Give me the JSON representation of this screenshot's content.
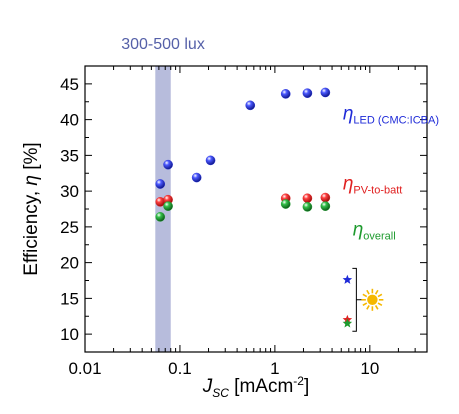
{
  "chart_data": {
    "type": "scatter",
    "x_scale": "log",
    "xlim": [
      0.01,
      40
    ],
    "ylim": [
      7.5,
      47.5
    ],
    "x_ticks": [
      0.01,
      0.1,
      1,
      10
    ],
    "x_tick_labels": [
      "0.01",
      "0.1",
      "1",
      "10"
    ],
    "y_ticks": [
      10,
      15,
      20,
      25,
      30,
      35,
      40,
      45
    ],
    "y_tick_labels": [
      "10",
      "15",
      "20",
      "25",
      "30",
      "35",
      "40",
      "45"
    ],
    "xlabel": {
      "main": "J",
      "sub": "SC",
      "unit_pre": " [mAcm",
      "unit_sup": "-2",
      "unit_post": "]"
    },
    "ylabel": {
      "pre": "Efficiency, ",
      "symbol": "η",
      "post": " [%]"
    },
    "band": {
      "x_range": [
        0.055,
        0.08
      ],
      "label": "300-500 lux",
      "color": "#aab0d6"
    },
    "series": [
      {
        "color": "#1f2bd8",
        "marker": "sphere",
        "x": [
          0.062,
          0.075,
          0.15,
          0.21,
          0.55,
          1.3,
          2.2,
          3.4
        ],
        "y": [
          31.0,
          33.7,
          31.9,
          34.3,
          42.0,
          43.6,
          43.7,
          43.8
        ]
      },
      {
        "color": "#e02020",
        "marker": "sphere",
        "x": [
          0.062,
          0.075,
          1.3,
          2.2,
          3.4
        ],
        "y": [
          28.5,
          28.8,
          29.0,
          29.0,
          29.1
        ]
      },
      {
        "color": "#1e9a2e",
        "marker": "sphere",
        "x": [
          0.062,
          0.075,
          1.3,
          2.2,
          3.4
        ],
        "y": [
          26.4,
          27.9,
          28.2,
          27.8,
          27.9
        ]
      },
      {
        "color": "#1f2bd8",
        "marker": "star",
        "x": [
          5.8
        ],
        "y": [
          17.6
        ]
      },
      {
        "color": "#e02020",
        "marker": "star",
        "x": [
          5.8
        ],
        "y": [
          12.0
        ]
      },
      {
        "color": "#1e9a2e",
        "marker": "star",
        "x": [
          5.8
        ],
        "y": [
          11.5
        ]
      }
    ],
    "annotations": [
      {
        "symbol": "η",
        "sub": "LED (CMC:ICBA)",
        "color": "#1f2bd8"
      },
      {
        "symbol": "η",
        "sub": "PV-to-batt",
        "color": "#e02020"
      },
      {
        "symbol": "η",
        "sub": "overall",
        "color": "#1e9a2e"
      }
    ],
    "sun_icon": "sun-icon",
    "sun_color": "#f5b800"
  }
}
